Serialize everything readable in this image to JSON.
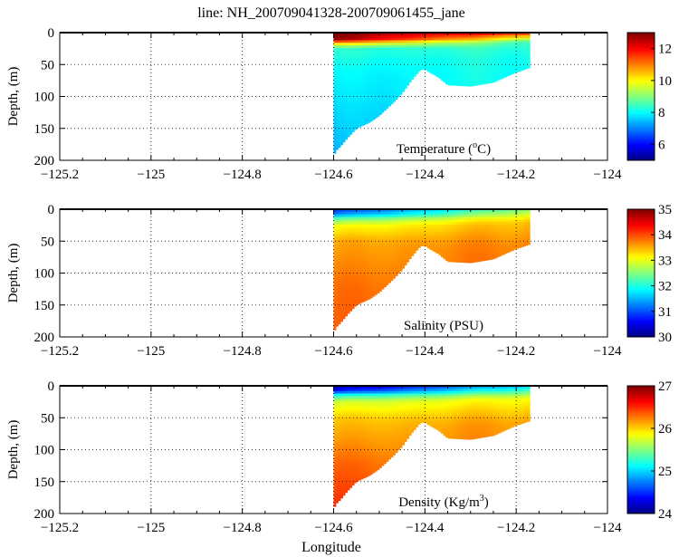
{
  "title": "line: NH_200709041328-200709061455_jane",
  "chart_data": {
    "type": "heatmap",
    "title": "line: NH_200709041328-200709061455_jane",
    "xlabel": "Longitude",
    "xlim": [
      -125.2,
      -124
    ],
    "xticks": [
      "-125.2",
      "-125",
      "-124.8",
      "-124.6",
      "-124.4",
      "-124.2",
      "-124"
    ],
    "colormap": "jet",
    "grid": true,
    "section_lon_range": [
      -124.6,
      -124.17
    ],
    "bottom_depth": [
      [
        -124.6,
        193
      ],
      [
        -124.595,
        185
      ],
      [
        -124.585,
        178
      ],
      [
        -124.57,
        165
      ],
      [
        -124.55,
        150
      ],
      [
        -124.52,
        140
      ],
      [
        -124.5,
        130
      ],
      [
        -124.47,
        110
      ],
      [
        -124.45,
        95
      ],
      [
        -124.43,
        75
      ],
      [
        -124.41,
        58
      ],
      [
        -124.4,
        57
      ],
      [
        -124.39,
        62
      ],
      [
        -124.37,
        70
      ],
      [
        -124.35,
        82
      ],
      [
        -124.3,
        84
      ],
      [
        -124.25,
        78
      ],
      [
        -124.2,
        62
      ],
      [
        -124.17,
        55
      ]
    ],
    "panels": [
      {
        "label_main": "Temperature (",
        "label_sup": "o",
        "label_end": "C)",
        "ylabel": "Depth, (m)",
        "ylim": [
          200,
          0
        ],
        "yticks": [
          "0",
          "50",
          "100",
          "150",
          "200"
        ],
        "clim": [
          5,
          13
        ],
        "cticks": [
          "6",
          "8",
          "10",
          "12"
        ],
        "offshore_profile": [
          [
            0,
            13
          ],
          [
            10,
            12.8
          ],
          [
            18,
            10
          ],
          [
            25,
            8.3
          ],
          [
            60,
            7.9
          ],
          [
            200,
            7.3
          ]
        ],
        "nearshore_profile": [
          [
            0,
            12
          ],
          [
            8,
            10
          ],
          [
            15,
            8.5
          ],
          [
            40,
            8.2
          ],
          [
            200,
            8
          ]
        ]
      },
      {
        "label_main": "Salinity (PSU)",
        "label_sup": "",
        "label_end": "",
        "ylabel": "Depth, (m)",
        "ylim": [
          200,
          0
        ],
        "yticks": [
          "0",
          "50",
          "100",
          "150",
          "200"
        ],
        "clim": [
          30,
          35
        ],
        "cticks": [
          "30",
          "31",
          "32",
          "33",
          "34",
          "35"
        ],
        "offshore_profile": [
          [
            0,
            30.8
          ],
          [
            8,
            31.2
          ],
          [
            15,
            32.3
          ],
          [
            25,
            33.0
          ],
          [
            50,
            33.5
          ],
          [
            120,
            33.8
          ],
          [
            200,
            33.9
          ]
        ],
        "nearshore_profile": [
          [
            0,
            32.6
          ],
          [
            8,
            33.0
          ],
          [
            20,
            33.5
          ],
          [
            60,
            33.8
          ],
          [
            200,
            33.9
          ]
        ]
      },
      {
        "label_main": "Density (Kg/m",
        "label_sup": "3",
        "label_end": ")",
        "ylabel": "Depth, (m)",
        "ylim": [
          200,
          0
        ],
        "yticks": [
          "0",
          "50",
          "100",
          "150",
          "200"
        ],
        "clim": [
          24,
          27
        ],
        "cticks": [
          "24",
          "25",
          "26",
          "27"
        ],
        "offshore_profile": [
          [
            0,
            24.1
          ],
          [
            8,
            24.4
          ],
          [
            15,
            25.2
          ],
          [
            25,
            25.7
          ],
          [
            50,
            26.0
          ],
          [
            120,
            26.3
          ],
          [
            200,
            26.5
          ]
        ],
        "nearshore_profile": [
          [
            0,
            25.0
          ],
          [
            8,
            25.4
          ],
          [
            20,
            25.9
          ],
          [
            60,
            26.2
          ],
          [
            200,
            26.3
          ]
        ]
      }
    ]
  }
}
